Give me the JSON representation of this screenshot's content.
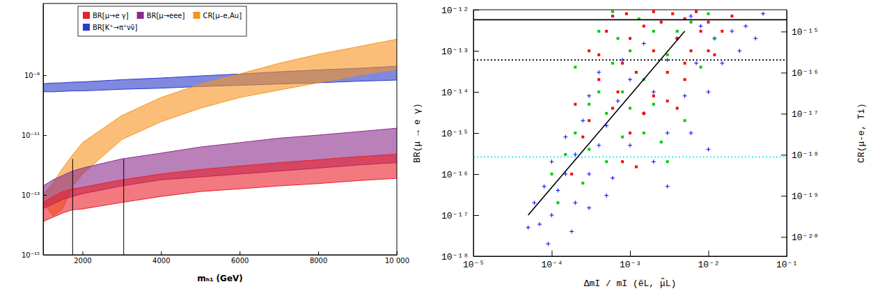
{
  "chart_data": [
    {
      "type": "area",
      "log": "y",
      "legend": "upper left",
      "x_label": "mₕ₁ (GeV)",
      "x": [
        1000,
        1250,
        1500,
        1750,
        2000,
        3000,
        4000,
        5000,
        6000,
        7000,
        8000,
        9000,
        10000
      ],
      "xlim": [
        1000,
        10000
      ],
      "xticks": [
        2000,
        4000,
        6000,
        8000,
        {
          "value": 10000,
          "label": "10 000"
        }
      ],
      "ylim": [
        1e-15,
        2.5e-07
      ],
      "yticks": [
        {
          "value": 1e-15,
          "label": "10⁻¹⁵"
        },
        {
          "value": 1e-13,
          "label": "10⁻¹³"
        },
        {
          "value": 1e-11,
          "label": "10⁻¹¹"
        },
        {
          "value": 1e-09,
          "label": "10⁻⁹"
        }
      ],
      "series": [
        {
          "name": "BR[μ→e γ]",
          "color": "#e8202a",
          "values": [
            5.6e-14,
            8.9e-14,
            1.3e-13,
            1.6e-13,
            1.8e-13,
            3.2e-13,
            5e-13,
            7.1e-13,
            9.3e-13,
            1.2e-12,
            1.5e-12,
            1.9e-12,
            2.3e-12
          ],
          "lower": [
            1.3e-14,
            1.8e-14,
            2.5e-14,
            3.2e-14,
            3.4e-14,
            5.6e-14,
            8.9e-14,
            1.3e-13,
            1.6e-13,
            2e-13,
            2.4e-13,
            3e-13,
            3.6e-13
          ]
        },
        {
          "name": "BR[μ→eee]",
          "color": "#8a2b8c",
          "values": [
            2e-13,
            3.2e-13,
            4.5e-13,
            6.3e-13,
            7.9e-13,
            1.6e-12,
            2.5e-12,
            4e-12,
            5.6e-12,
            7.9e-12,
            1e-11,
            1.3e-11,
            1.7e-11
          ],
          "lower": [
            3.5e-14,
            5e-14,
            7.1e-14,
            8.9e-14,
            1.1e-13,
            2e-13,
            3.2e-13,
            4e-13,
            5e-13,
            6.3e-13,
            7.9e-13,
            1e-12,
            1.2e-12
          ]
        },
        {
          "name": "CR[μ–e,Au]",
          "color": "#f7931e",
          "values": [
            1e-13,
            2.5e-13,
            7.9e-13,
            2.2e-12,
            5.6e-12,
            4.5e-11,
            1.8e-10,
            5e-10,
            1.1e-09,
            2.5e-09,
            5e-09,
            8.9e-09,
            1.6e-08
          ],
          "lower": [
            5.6e-14,
            2e-14,
            3.5e-14,
            2e-13,
            5e-13,
            7.1e-12,
            2.8e-11,
            7.9e-11,
            1.8e-10,
            3.2e-10,
            5.6e-10,
            1e-09,
            1.6e-09
          ]
        },
        {
          "name": "BR[K⁺→π⁺νν̄]",
          "color": "#2a3bc8",
          "values": [
            5.2e-10,
            5.5e-10,
            5.6e-10,
            5.9e-10,
            6e-10,
            7.1e-10,
            8.1e-10,
            9.5e-10,
            1.1e-09,
            1.3e-09,
            1.5e-09,
            1.7e-09,
            2e-09
          ],
          "lower": [
            2.8e-10,
            2.8e-10,
            2.9e-10,
            3e-10,
            3e-10,
            3.4e-10,
            3.7e-10,
            4.2e-10,
            4.6e-10,
            5.1e-10,
            5.6e-10,
            6.3e-10,
            6.9e-10
          ]
        },
        {
          "type": "line",
          "color": "#000000",
          "x": [
            1750,
            1750
          ],
          "values": [
            1e-15,
            1.6e-12
          ]
        },
        {
          "type": "line",
          "color": "#000000",
          "x": [
            3050,
            3050
          ],
          "values": [
            1e-15,
            1.6e-12
          ]
        }
      ]
    },
    {
      "type": "scatter",
      "log": true,
      "x_label": "ΔmI / mI (ẽL, μ̃L)",
      "y_label": "BR(μ → e γ)",
      "y2_label": "CR(μ-e, Ti)",
      "xlim": [
        1e-05,
        0.1
      ],
      "xticks": [
        {
          "value": 1e-05,
          "label": "10⁻⁵"
        },
        {
          "value": 0.0001,
          "label": "10⁻⁴"
        },
        {
          "value": 0.001,
          "label": "10⁻³"
        },
        {
          "value": 0.01,
          "label": "10⁻²"
        },
        {
          "value": 0.1,
          "label": "10⁻¹"
        }
      ],
      "ylim": [
        1e-18,
        1e-12
      ],
      "yticks": [
        {
          "value": 1e-18,
          "label": "10⁻¹⁸"
        },
        {
          "value": 1e-17,
          "label": "10⁻¹⁷"
        },
        {
          "value": 1e-16,
          "label": "10⁻¹⁶"
        },
        {
          "value": 1e-15,
          "label": "10⁻¹⁵"
        },
        {
          "value": 1e-14,
          "label": "10⁻¹⁴"
        },
        {
          "value": 1e-13,
          "label": "10⁻¹³"
        },
        {
          "value": 1e-12,
          "label": "10⁻¹²"
        }
      ],
      "y2lim": [
        3.4e-21,
        3.4e-15
      ],
      "y2ticks": [
        {
          "value": 1e-20,
          "label": "10⁻²⁰"
        },
        {
          "value": 1e-19,
          "label": "10⁻¹⁹"
        },
        {
          "value": 1e-18,
          "label": "10⁻¹⁸"
        },
        {
          "value": 1e-17,
          "label": "10⁻¹⁷"
        },
        {
          "value": 1e-16,
          "label": "10⁻¹⁶"
        },
        {
          "value": 1e-15,
          "label": "10⁻¹⁵"
        }
      ],
      "series": [
        {
          "type": "scatter",
          "color": "#0000ff",
          "marker": "plus",
          "x": [
            5e-05,
            6e-05,
            7e-05,
            8e-05,
            0.0001,
            0.0001,
            0.00012,
            0.00015,
            0.00015,
            0.0002,
            0.0002,
            0.00025,
            0.0003,
            0.0003,
            0.0004,
            0.0004,
            0.0005,
            0.0006,
            0.0007,
            0.0008,
            0.001,
            0.001,
            0.0015,
            0.0015,
            0.002,
            0.002,
            0.003,
            0.003,
            0.004,
            0.005,
            0.006,
            0.007,
            0.008,
            0.01,
            0.012,
            0.015,
            0.02,
            0.025,
            0.03,
            0.04,
            0.05,
            0.006,
            9e-05,
            0.00018,
            0.0003,
            0.0005,
            0.003,
            0.01
          ],
          "values": [
            5e-18,
            2e-17,
            6e-18,
            5e-17,
            1e-17,
            2e-16,
            4e-17,
            1e-16,
            8e-16,
            2e-17,
            3e-16,
            2e-15,
            1e-16,
            8e-15,
            5e-16,
            3e-14,
            1.5e-15,
            8e-17,
            6e-15,
            6e-14,
            5e-16,
            2e-14,
            3e-15,
            1.5e-13,
            2e-16,
            1e-14,
            1e-15,
            6e-14,
            2e-13,
            8e-15,
            1e-15,
            5e-14,
            4e-13,
            1e-14,
            2e-13,
            5e-14,
            3e-13,
            1e-13,
            4e-13,
            2e-13,
            8e-13,
            7e-13,
            2e-18,
            4e-18,
            1.5e-17,
            3e-17,
            5e-17,
            4e-16
          ]
        },
        {
          "type": "scatter",
          "color": "#00cc00",
          "marker": "square",
          "x": [
            0.00015,
            0.0002,
            0.0003,
            0.0003,
            0.0004,
            0.0005,
            0.0006,
            0.0008,
            0.001,
            0.001,
            0.0015,
            0.002,
            0.002,
            0.003,
            0.004,
            0.005,
            0.006,
            0.008,
            0.01,
            0.0013,
            0.0007,
            0.0001,
            0.00012,
            0.00025,
            0.0005,
            0.0008,
            0.0015,
            0.0025,
            0.003,
            0.012,
            0.0006,
            0.0002,
            0.0004
          ],
          "values": [
            3e-16,
            1e-15,
            4e-16,
            5e-15,
            1e-14,
            3e-15,
            5e-14,
            1e-14,
            1e-13,
            4e-15,
            2e-14,
            3e-13,
            5e-15,
            8e-14,
            3e-13,
            2e-15,
            5e-13,
            4e-14,
            8e-13,
            6e-13,
            2e-13,
            1e-16,
            2e-17,
            6e-17,
            2e-16,
            8e-16,
            1e-15,
            6e-16,
            2e-16,
            2e-13,
            9e-13,
            4e-14,
            3e-13
          ]
        },
        {
          "type": "scatter",
          "color": "#ff0000",
          "marker": "square",
          "x": [
            0.0003,
            0.0005,
            0.0008,
            0.001,
            0.0015,
            0.002,
            0.0025,
            0.003,
            0.004,
            0.005,
            0.006,
            0.008,
            0.01,
            0.012,
            0.015,
            0.0007,
            0.0012,
            0.002,
            0.0004,
            0.0002,
            0.0003,
            0.0006,
            0.001,
            0.0015,
            0.003,
            0.005,
            0.00018,
            0.00025,
            0.0004,
            0.0006,
            0.0009,
            0.002,
            0.0035,
            0.007,
            0.01,
            0.02,
            0.004,
            0.0008,
            0.0012,
            0.005
          ],
          "values": [
            1e-13,
            3e-13,
            5e-14,
            2e-13,
            4e-13,
            1e-13,
            5e-13,
            3e-14,
            2e-13,
            6e-13,
            1e-13,
            3e-13,
            5e-13,
            8e-14,
            3e-13,
            1e-14,
            3e-14,
            8e-15,
            2e-14,
            5e-15,
            2e-15,
            4e-15,
            1e-15,
            3e-15,
            6e-15,
            2e-14,
            1e-16,
            8e-16,
            8e-14,
            7e-13,
            8e-13,
            9e-13,
            8e-13,
            9e-13,
            1e-13,
            7e-13,
            4e-15,
            2e-16,
            1.5e-16,
            5e-14
          ]
        },
        {
          "type": "line",
          "color": "#000000",
          "line_style": "solid",
          "x": [
            1e-05,
            0.1
          ],
          "values": [
            5.7e-13,
            5.7e-13
          ]
        },
        {
          "type": "line",
          "color": "#000000",
          "line_style": "dotted",
          "x": [
            1e-05,
            0.1
          ],
          "values": [
            6e-14,
            6e-14
          ]
        },
        {
          "type": "line",
          "color": "#00e5ee",
          "line_style": "dotted",
          "x": [
            1e-05,
            0.1
          ],
          "values": [
            2.6e-16,
            2.6e-16
          ]
        },
        {
          "type": "line",
          "color": "#000000",
          "line_style": "solid",
          "x": [
            5e-05,
            0.005
          ],
          "values": [
            1e-17,
            3e-13
          ]
        }
      ]
    }
  ]
}
